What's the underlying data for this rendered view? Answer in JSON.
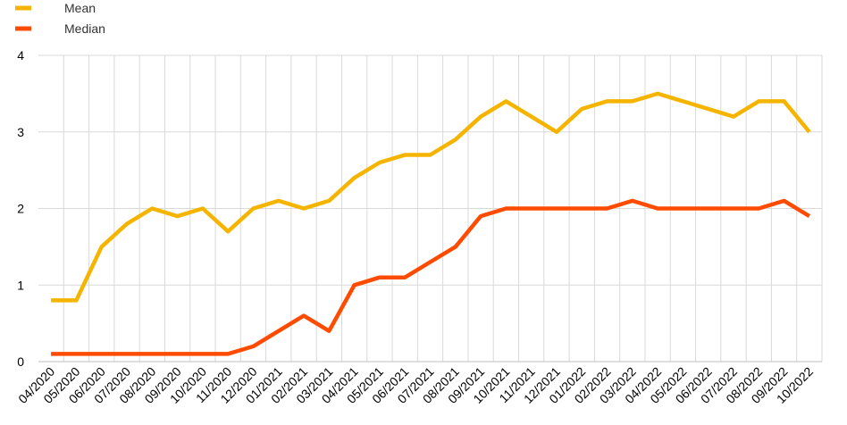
{
  "chart_data": {
    "type": "line",
    "title": "",
    "xlabel": "",
    "ylabel": "",
    "ylim": [
      0,
      4
    ],
    "yticks": [
      "0",
      "1",
      "2",
      "3",
      "4"
    ],
    "grid": true,
    "legend_position": "top-left",
    "categories": [
      "04/2020",
      "05/2020",
      "06/2020",
      "07/2020",
      "08/2020",
      "09/2020",
      "10/2020",
      "11/2020",
      "12/2020",
      "01/2021",
      "02/2021",
      "03/2021",
      "04/2021",
      "05/2021",
      "06/2021",
      "07/2021",
      "08/2021",
      "09/2021",
      "10/2021",
      "11/2021",
      "12/2021",
      "01/2022",
      "02/2022",
      "03/2022",
      "04/2022",
      "05/2022",
      "06/2022",
      "07/2022",
      "08/2022",
      "09/2022",
      "10/2022"
    ],
    "series": [
      {
        "name": "Mean",
        "color": "#F5B400",
        "values": [
          0.8,
          0.8,
          1.5,
          1.8,
          2.0,
          1.9,
          2.0,
          1.7,
          2.0,
          2.1,
          2.0,
          2.1,
          2.4,
          2.6,
          2.7,
          2.7,
          2.9,
          3.2,
          3.4,
          3.2,
          3.0,
          3.3,
          3.4,
          3.4,
          3.5,
          3.4,
          3.3,
          3.2,
          3.4,
          3.4,
          3.0
        ]
      },
      {
        "name": "Median",
        "color": "#FF4B00",
        "values": [
          0.1,
          0.1,
          0.1,
          0.1,
          0.1,
          0.1,
          0.1,
          0.1,
          0.2,
          0.4,
          0.6,
          0.4,
          1.0,
          1.1,
          1.1,
          1.3,
          1.5,
          1.9,
          2.0,
          2.0,
          2.0,
          2.0,
          2.0,
          2.1,
          2.0,
          2.0,
          2.0,
          2.0,
          2.0,
          2.1,
          1.9
        ]
      }
    ]
  }
}
